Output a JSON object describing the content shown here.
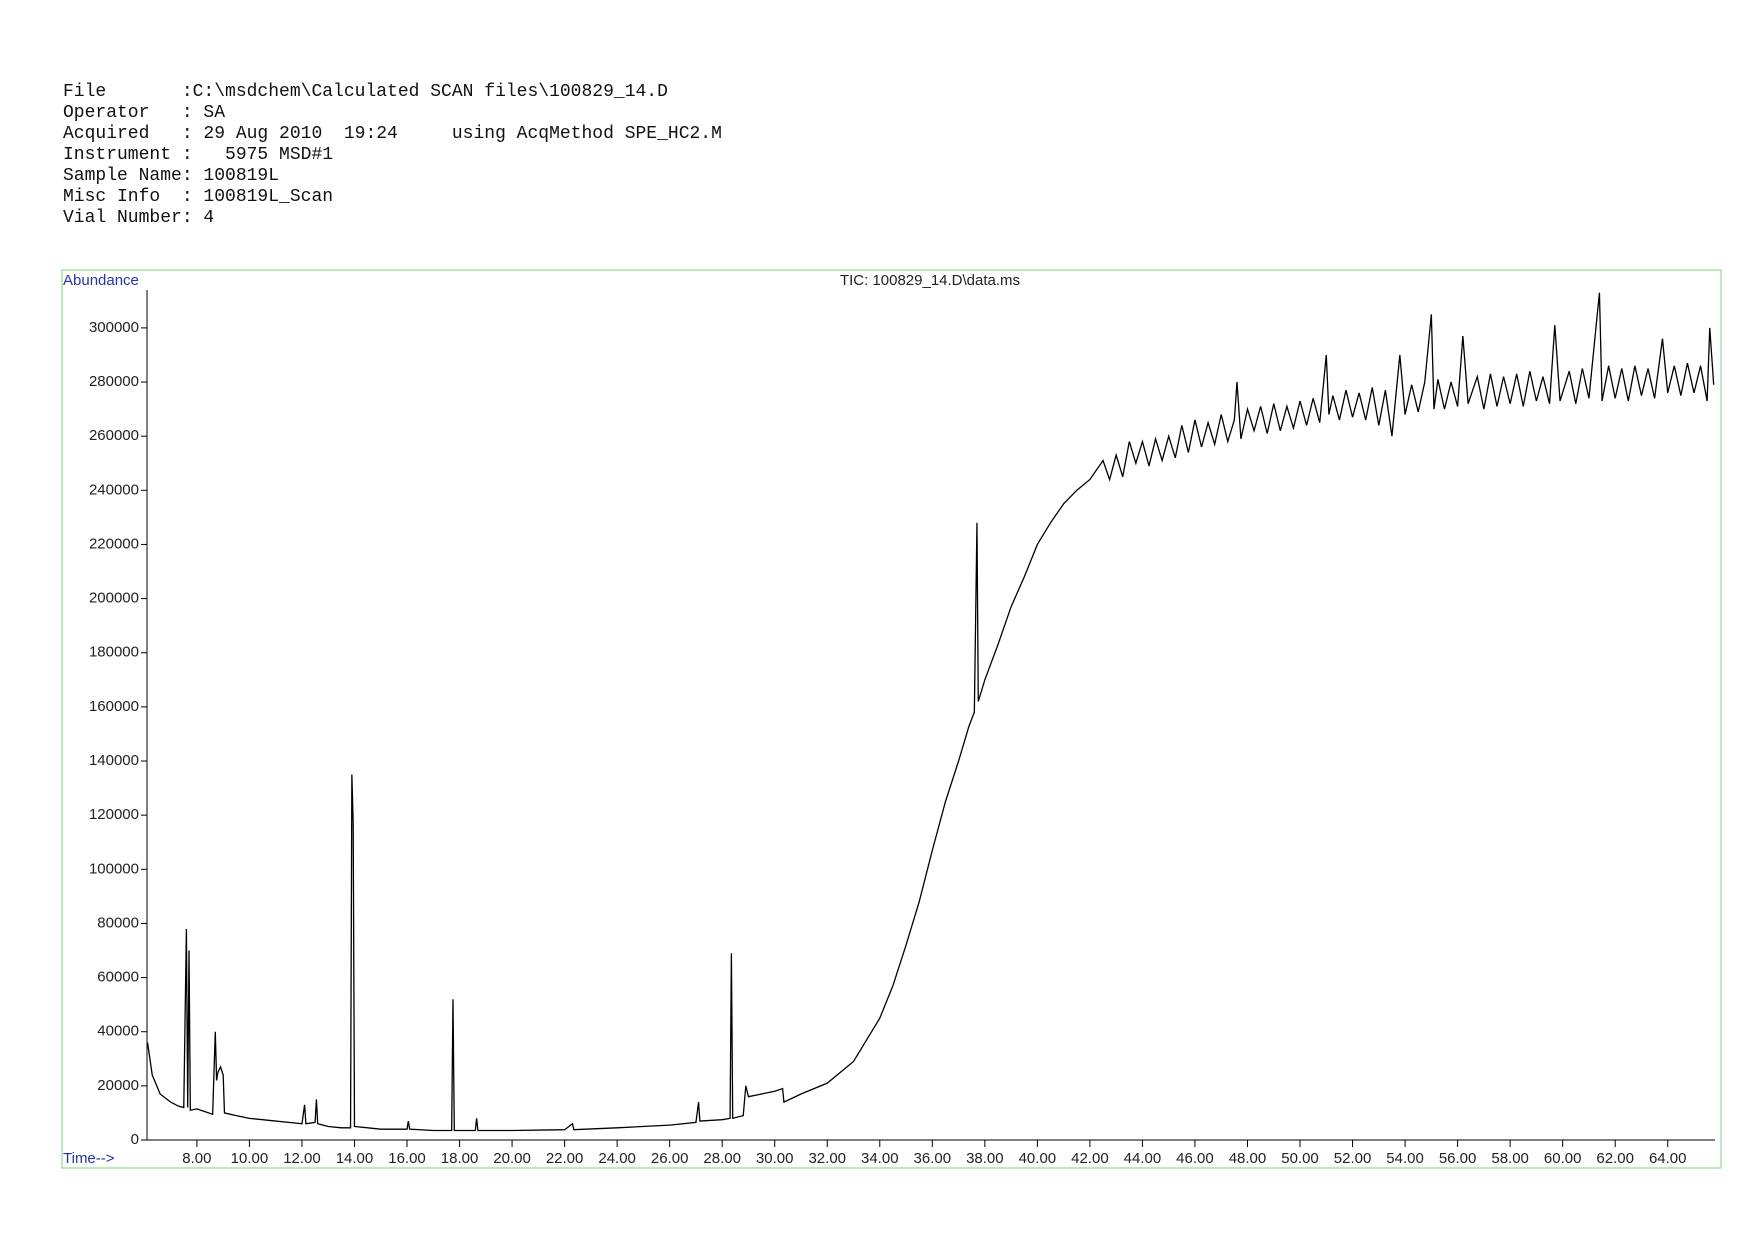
{
  "header": {
    "lines": [
      "File       :C:\\msdchem\\Calculated SCAN files\\100829_14.D",
      "Operator   : SA",
      "Acquired   : 29 Aug 2010  19:24     using AcqMethod SPE_HC2.M",
      "Instrument :   5975 MSD#1",
      "Sample Name: 100819L",
      "Misc Info  : 100819L_Scan",
      "Vial Number: 4"
    ]
  },
  "chart_data": {
    "type": "line",
    "title": "TIC: 100829_14.D\\data.ms",
    "ylabel": "Abundance",
    "xlabel": "Time-->",
    "color": "#000000",
    "xlim": [
      6.1,
      65.8
    ],
    "ylim": [
      0,
      314000
    ],
    "yticks": [
      0,
      20000,
      40000,
      60000,
      80000,
      100000,
      120000,
      140000,
      160000,
      180000,
      200000,
      220000,
      240000,
      260000,
      280000,
      300000
    ],
    "xticks": [
      {
        "value": 8,
        "label": "8.00"
      },
      {
        "value": 10,
        "label": "10.00"
      },
      {
        "value": 12,
        "label": "12.00"
      },
      {
        "value": 14,
        "label": "14.00"
      },
      {
        "value": 16,
        "label": "16.00"
      },
      {
        "value": 18,
        "label": "18.00"
      },
      {
        "value": 20,
        "label": "20.00"
      },
      {
        "value": 22,
        "label": "22.00"
      },
      {
        "value": 24,
        "label": "24.00"
      },
      {
        "value": 26,
        "label": "26.00"
      },
      {
        "value": 28,
        "label": "28.00"
      },
      {
        "value": 30,
        "label": "30.00"
      },
      {
        "value": 32,
        "label": "32.00"
      },
      {
        "value": 34,
        "label": "34.00"
      },
      {
        "value": 36,
        "label": "36.00"
      },
      {
        "value": 38,
        "label": "38.00"
      },
      {
        "value": 40,
        "label": "40.00"
      },
      {
        "value": 42,
        "label": "42.00"
      },
      {
        "value": 44,
        "label": "44.00"
      },
      {
        "value": 46,
        "label": "46.00"
      },
      {
        "value": 48,
        "label": "48.00"
      },
      {
        "value": 50,
        "label": "50.00"
      },
      {
        "value": 52,
        "label": "52.00"
      },
      {
        "value": 54,
        "label": "54.00"
      },
      {
        "value": 56,
        "label": "56.00"
      },
      {
        "value": 58,
        "label": "58.00"
      },
      {
        "value": 60,
        "label": "60.00"
      },
      {
        "value": 62,
        "label": "62.00"
      },
      {
        "value": 64,
        "label": "64.00"
      }
    ],
    "x": [
      6.12,
      6.3,
      6.6,
      7.0,
      7.3,
      7.5,
      7.6,
      7.65,
      7.7,
      7.75,
      8.0,
      8.3,
      8.6,
      8.7,
      8.75,
      8.8,
      8.9,
      9.0,
      9.05,
      9.5,
      10.0,
      10.5,
      11.0,
      11.5,
      12.0,
      12.1,
      12.15,
      12.5,
      12.55,
      12.6,
      13.0,
      13.5,
      13.85,
      13.9,
      13.95,
      14.0,
      14.5,
      15.0,
      16.0,
      16.05,
      16.1,
      17.0,
      17.7,
      17.75,
      17.8,
      18.6,
      18.65,
      18.7,
      20.0,
      22.0,
      22.3,
      22.35,
      24.0,
      26.0,
      27.0,
      27.1,
      27.15,
      28.0,
      28.3,
      28.35,
      28.4,
      28.8,
      28.9,
      29.0,
      29.5,
      30.0,
      30.3,
      30.35,
      31.0,
      32.0,
      33.0,
      34.0,
      34.5,
      35.0,
      35.5,
      36.0,
      36.5,
      37.0,
      37.4,
      37.6,
      37.7,
      37.75,
      38.0,
      38.5,
      39.0,
      39.5,
      40.0,
      40.5,
      41.0,
      41.5,
      42.0,
      42.5,
      42.75,
      43.0,
      43.25,
      43.5,
      43.75,
      44.0,
      44.25,
      44.5,
      44.75,
      45.0,
      45.25,
      45.5,
      45.75,
      46.0,
      46.25,
      46.5,
      46.75,
      47.0,
      47.25,
      47.5,
      47.6,
      47.75,
      48.0,
      48.25,
      48.5,
      48.75,
      49.0,
      49.25,
      49.5,
      49.75,
      50.0,
      50.25,
      50.5,
      50.75,
      51.0,
      51.1,
      51.25,
      51.5,
      51.75,
      52.0,
      52.25,
      52.5,
      52.75,
      53.0,
      53.25,
      53.5,
      53.8,
      54.0,
      54.25,
      54.5,
      54.75,
      55.0,
      55.1,
      55.25,
      55.5,
      55.75,
      56.0,
      56.2,
      56.4,
      56.75,
      57.0,
      57.25,
      57.5,
      57.75,
      58.0,
      58.25,
      58.5,
      58.75,
      59.0,
      59.25,
      59.5,
      59.7,
      59.9,
      60.25,
      60.5,
      60.75,
      61.0,
      61.4,
      61.5,
      61.75,
      62.0,
      62.25,
      62.5,
      62.75,
      63.0,
      63.25,
      63.5,
      63.8,
      64.0,
      64.25,
      64.5,
      64.75,
      65.0,
      65.25,
      65.5,
      65.6,
      65.75
    ],
    "values": [
      36000,
      24000,
      17000,
      14000,
      12500,
      12000,
      78000,
      12000,
      70000,
      11000,
      11500,
      10500,
      9500,
      40000,
      22000,
      25000,
      27000,
      24000,
      10000,
      9000,
      8000,
      7500,
      7000,
      6500,
      6000,
      13000,
      6000,
      6500,
      15000,
      6000,
      5000,
      4500,
      4500,
      135000,
      117000,
      5000,
      4500,
      4000,
      4000,
      7000,
      4000,
      3500,
      3500,
      52000,
      3500,
      3500,
      8000,
      3500,
      3500,
      3800,
      6000,
      3800,
      4500,
      5500,
      6500,
      14000,
      7000,
      7500,
      8000,
      69000,
      8000,
      9000,
      20000,
      16000,
      17000,
      18000,
      19000,
      14000,
      17000,
      21000,
      29000,
      45000,
      57000,
      72000,
      88000,
      107000,
      125000,
      140000,
      153000,
      158000,
      228000,
      162000,
      170000,
      183000,
      197000,
      208000,
      220000,
      228000,
      235000,
      240000,
      244000,
      251000,
      244000,
      253000,
      245000,
      258000,
      250000,
      258000,
      249000,
      259000,
      251000,
      260000,
      252000,
      264000,
      254000,
      266000,
      256000,
      265000,
      257000,
      268000,
      258000,
      266000,
      280000,
      259000,
      270000,
      262000,
      271000,
      261000,
      272000,
      262000,
      271000,
      263000,
      273000,
      264000,
      274000,
      265000,
      290000,
      268000,
      275000,
      266000,
      277000,
      267000,
      276000,
      266000,
      278000,
      264000,
      277000,
      260000,
      290000,
      268000,
      279000,
      269000,
      280000,
      305000,
      270000,
      281000,
      270000,
      280000,
      271000,
      297000,
      272000,
      282000,
      270000,
      283000,
      271000,
      282000,
      272000,
      283000,
      271000,
      284000,
      273000,
      282000,
      272000,
      301000,
      273000,
      284000,
      272000,
      285000,
      274000,
      313000,
      273000,
      286000,
      274000,
      285000,
      273000,
      286000,
      275000,
      285000,
      274000,
      296000,
      276000,
      286000,
      275000,
      287000,
      276000,
      286000,
      273000,
      300000,
      279000
    ]
  }
}
